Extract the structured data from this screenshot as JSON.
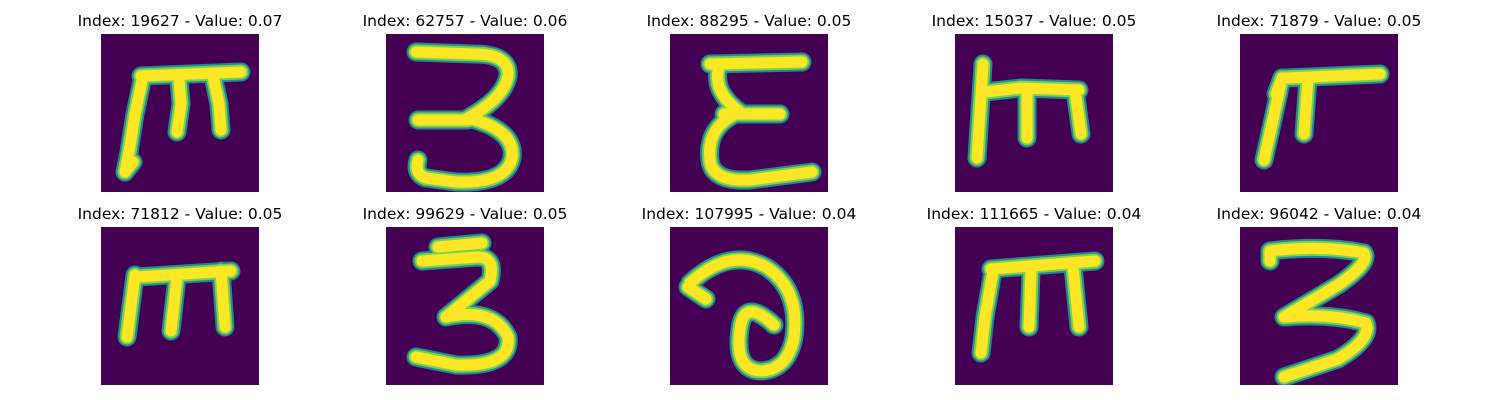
{
  "colors": {
    "background": "#440154",
    "stroke": "#fde725",
    "halo": "#23898e"
  },
  "images": [
    {
      "index": "19627",
      "value": "0.07",
      "title": "Index: 19627 - Value: 0.07",
      "glyph": "m-bar"
    },
    {
      "index": "62757",
      "value": "0.06",
      "title": "Index: 62757 - Value: 0.06",
      "glyph": "three"
    },
    {
      "index": "88295",
      "value": "0.05",
      "title": "Index: 88295 - Value: 0.05",
      "glyph": "epsilon"
    },
    {
      "index": "15037",
      "value": "0.05",
      "title": "Index: 15037 - Value: 0.05",
      "glyph": "m-tall"
    },
    {
      "index": "71879",
      "value": "0.05",
      "title": "Index: 71879 - Value: 0.05",
      "glyph": "pi"
    },
    {
      "index": "71812",
      "value": "0.05",
      "title": "Index: 71812 - Value: 0.05",
      "glyph": "m-small"
    },
    {
      "index": "99629",
      "value": "0.05",
      "title": "Index: 99629 - Value: 0.05",
      "glyph": "three-b"
    },
    {
      "index": "107995",
      "value": "0.04",
      "title": "Index: 107995 - Value: 0.04",
      "glyph": "loop"
    },
    {
      "index": "111665",
      "value": "0.04",
      "title": "Index: 111665 - Value: 0.04",
      "glyph": "m-bar-b"
    },
    {
      "index": "96042",
      "value": "0.04",
      "title": "Index: 96042 - Value: 0.04",
      "glyph": "z-three"
    }
  ]
}
